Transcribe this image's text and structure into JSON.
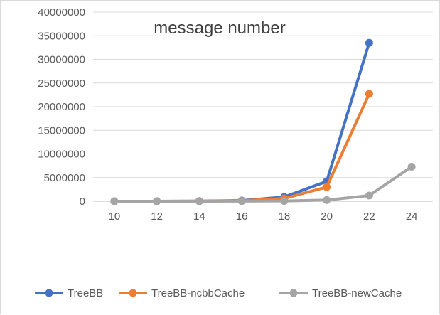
{
  "chart_data": {
    "type": "line",
    "title": "message number",
    "xlabel": "",
    "ylabel": "",
    "x": [
      10,
      12,
      14,
      16,
      18,
      20,
      22,
      24
    ],
    "ylim": [
      0,
      40000000
    ],
    "yticks": [
      "0",
      "5000000",
      "10000000",
      "15000000",
      "20000000",
      "25000000",
      "30000000",
      "35000000",
      "40000000"
    ],
    "xticks": [
      "10",
      "12",
      "14",
      "16",
      "18",
      "20",
      "22",
      "24"
    ],
    "grid": true,
    "legend_position": "bottom",
    "series": [
      {
        "name": "TreeBB",
        "color": "#4472c4",
        "values": [
          2000,
          8000,
          35000,
          150000,
          900000,
          4200000,
          33500000,
          null
        ]
      },
      {
        "name": "TreeBB-ncbbCache",
        "color": "#ed7d31",
        "values": [
          1500,
          6000,
          25000,
          110000,
          600000,
          3000000,
          22700000,
          null
        ]
      },
      {
        "name": "TreeBB-newCache",
        "color": "#a5a5a5",
        "values": [
          1000,
          3000,
          8000,
          20000,
          60000,
          250000,
          1200000,
          7300000
        ]
      }
    ]
  }
}
